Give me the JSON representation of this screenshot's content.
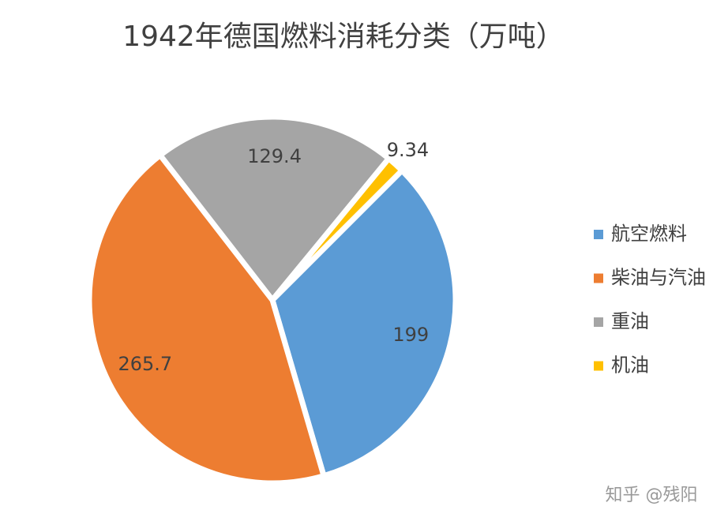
{
  "chart_data": {
    "type": "pie",
    "title": "1942年德国燃料消耗分类（万吨）",
    "categories": [
      "航空燃料",
      "柴油与汽油",
      "重油",
      "机油"
    ],
    "values": [
      199,
      265.7,
      129.4,
      9.34
    ],
    "colors": [
      "#5b9bd5",
      "#ed7d31",
      "#a5a5a5",
      "#ffc000"
    ],
    "legend": "right"
  },
  "watermark": "知乎 @残阳"
}
